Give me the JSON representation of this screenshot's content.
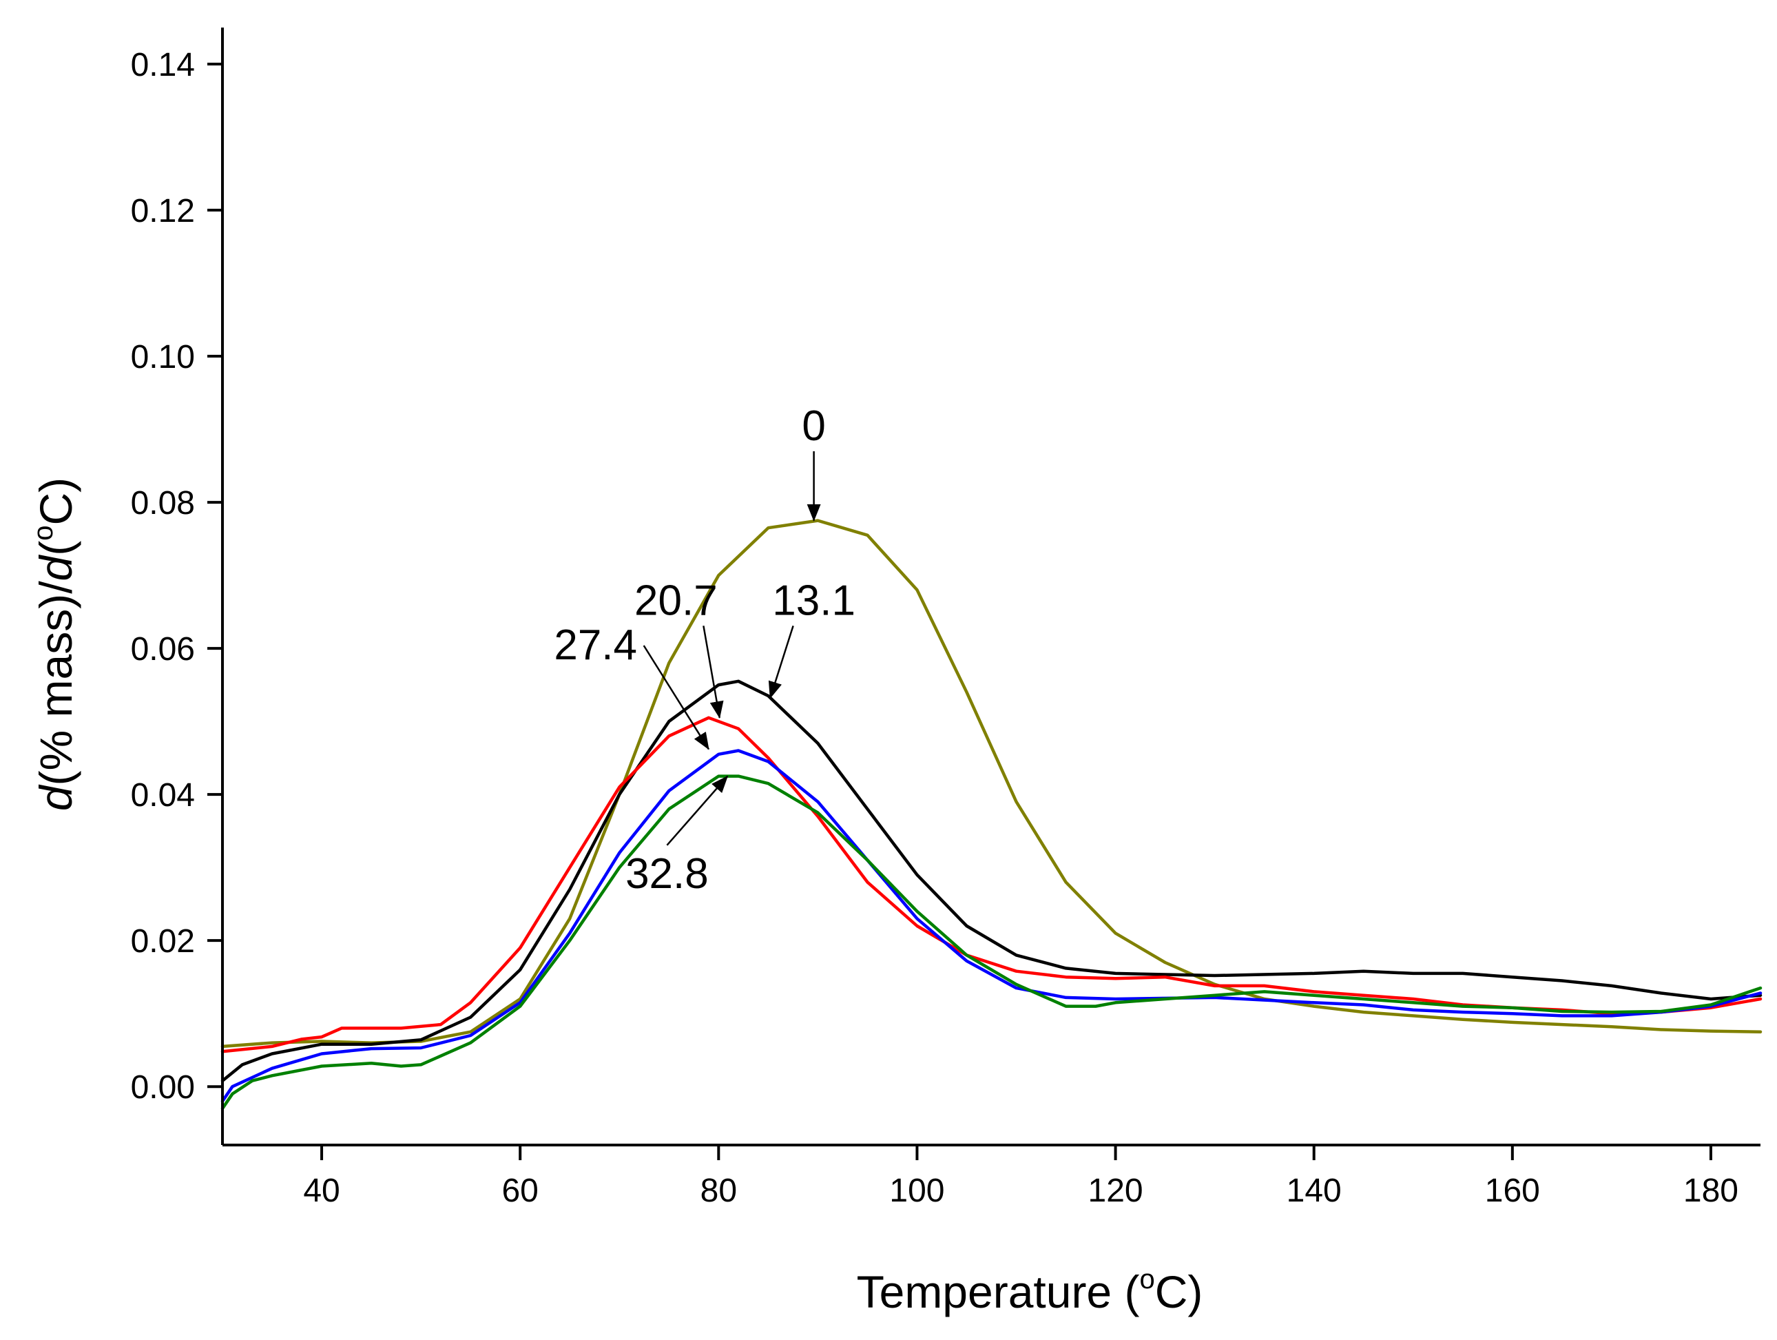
{
  "chart_data": {
    "type": "line",
    "title": "",
    "xlabel": {
      "pre": "Temperature (",
      "sup": "o",
      "post": "C)"
    },
    "ylabel": {
      "d1": "d",
      "mid": "(% mass)/",
      "d2": "d",
      "paren": "(",
      "sup": "o",
      "post": "C)"
    },
    "xlim": [
      30,
      185
    ],
    "ylim": [
      -0.008,
      0.145
    ],
    "xticks": [
      40,
      60,
      80,
      100,
      120,
      140,
      160,
      180
    ],
    "xtick_labels": [
      "40",
      "60",
      "80",
      "100",
      "120",
      "140",
      "160",
      "180"
    ],
    "yticks": [
      0.0,
      0.02,
      0.04,
      0.06,
      0.08,
      0.1,
      0.12,
      0.14
    ],
    "ytick_labels": [
      "0.00",
      "0.02",
      "0.04",
      "0.06",
      "0.08",
      "0.10",
      "0.12",
      "0.14"
    ],
    "series": [
      {
        "name": "0",
        "color": "#808000",
        "points": [
          [
            30,
            0.0055
          ],
          [
            35,
            0.006
          ],
          [
            40,
            0.0062
          ],
          [
            45,
            0.006
          ],
          [
            50,
            0.0062
          ],
          [
            55,
            0.0075
          ],
          [
            60,
            0.012
          ],
          [
            65,
            0.023
          ],
          [
            70,
            0.04
          ],
          [
            75,
            0.058
          ],
          [
            80,
            0.07
          ],
          [
            85,
            0.0765
          ],
          [
            90,
            0.0775
          ],
          [
            95,
            0.0755
          ],
          [
            100,
            0.068
          ],
          [
            105,
            0.054
          ],
          [
            110,
            0.039
          ],
          [
            115,
            0.028
          ],
          [
            120,
            0.021
          ],
          [
            125,
            0.017
          ],
          [
            130,
            0.014
          ],
          [
            135,
            0.012
          ],
          [
            140,
            0.011
          ],
          [
            145,
            0.0102
          ],
          [
            150,
            0.0097
          ],
          [
            155,
            0.0092
          ],
          [
            160,
            0.0088
          ],
          [
            165,
            0.0085
          ],
          [
            170,
            0.0082
          ],
          [
            175,
            0.0078
          ],
          [
            180,
            0.0076
          ],
          [
            185,
            0.0075
          ]
        ]
      },
      {
        "name": "13.1",
        "color": "#000000",
        "points": [
          [
            30,
            0.0008
          ],
          [
            32,
            0.003
          ],
          [
            35,
            0.0045
          ],
          [
            40,
            0.0058
          ],
          [
            45,
            0.0058
          ],
          [
            50,
            0.0064
          ],
          [
            55,
            0.0095
          ],
          [
            60,
            0.016
          ],
          [
            65,
            0.027
          ],
          [
            70,
            0.04
          ],
          [
            75,
            0.05
          ],
          [
            80,
            0.055
          ],
          [
            82,
            0.0555
          ],
          [
            85,
            0.0535
          ],
          [
            90,
            0.047
          ],
          [
            95,
            0.038
          ],
          [
            100,
            0.029
          ],
          [
            105,
            0.022
          ],
          [
            110,
            0.018
          ],
          [
            115,
            0.0162
          ],
          [
            120,
            0.0155
          ],
          [
            130,
            0.0152
          ],
          [
            140,
            0.0155
          ],
          [
            145,
            0.0158
          ],
          [
            150,
            0.0155
          ],
          [
            155,
            0.0155
          ],
          [
            160,
            0.015
          ],
          [
            165,
            0.0145
          ],
          [
            170,
            0.0138
          ],
          [
            175,
            0.0128
          ],
          [
            180,
            0.012
          ],
          [
            185,
            0.0125
          ]
        ]
      },
      {
        "name": "20.7",
        "color": "#ff0000",
        "points": [
          [
            30,
            0.0048
          ],
          [
            35,
            0.0055
          ],
          [
            38,
            0.0065
          ],
          [
            40,
            0.0068
          ],
          [
            42,
            0.008
          ],
          [
            48,
            0.008
          ],
          [
            52,
            0.0085
          ],
          [
            55,
            0.0115
          ],
          [
            60,
            0.019
          ],
          [
            65,
            0.03
          ],
          [
            70,
            0.041
          ],
          [
            75,
            0.048
          ],
          [
            79,
            0.0505
          ],
          [
            82,
            0.049
          ],
          [
            85,
            0.045
          ],
          [
            90,
            0.037
          ],
          [
            95,
            0.028
          ],
          [
            100,
            0.022
          ],
          [
            105,
            0.018
          ],
          [
            110,
            0.0158
          ],
          [
            115,
            0.015
          ],
          [
            120,
            0.0148
          ],
          [
            125,
            0.015
          ],
          [
            130,
            0.0138
          ],
          [
            135,
            0.0138
          ],
          [
            140,
            0.013
          ],
          [
            145,
            0.0125
          ],
          [
            150,
            0.012
          ],
          [
            155,
            0.0112
          ],
          [
            160,
            0.0108
          ],
          [
            165,
            0.0105
          ],
          [
            170,
            0.01
          ],
          [
            175,
            0.0102
          ],
          [
            180,
            0.0108
          ],
          [
            185,
            0.012
          ]
        ]
      },
      {
        "name": "27.4",
        "color": "#0000ff",
        "points": [
          [
            30,
            -0.002
          ],
          [
            31,
            0.0
          ],
          [
            35,
            0.0025
          ],
          [
            40,
            0.0045
          ],
          [
            45,
            0.0052
          ],
          [
            50,
            0.0053
          ],
          [
            55,
            0.007
          ],
          [
            60,
            0.0115
          ],
          [
            65,
            0.021
          ],
          [
            70,
            0.032
          ],
          [
            75,
            0.0405
          ],
          [
            80,
            0.0455
          ],
          [
            82,
            0.046
          ],
          [
            85,
            0.0445
          ],
          [
            90,
            0.039
          ],
          [
            95,
            0.031
          ],
          [
            100,
            0.023
          ],
          [
            105,
            0.0172
          ],
          [
            110,
            0.0135
          ],
          [
            115,
            0.0122
          ],
          [
            120,
            0.012
          ],
          [
            130,
            0.0122
          ],
          [
            140,
            0.0115
          ],
          [
            145,
            0.0112
          ],
          [
            150,
            0.0105
          ],
          [
            155,
            0.0102
          ],
          [
            160,
            0.01
          ],
          [
            165,
            0.0097
          ],
          [
            170,
            0.0097
          ],
          [
            175,
            0.0102
          ],
          [
            180,
            0.011
          ],
          [
            185,
            0.0128
          ]
        ]
      },
      {
        "name": "32.8",
        "color": "#008000",
        "points": [
          [
            30,
            -0.003
          ],
          [
            31,
            -0.001
          ],
          [
            33,
            0.0008
          ],
          [
            35,
            0.0015
          ],
          [
            40,
            0.0028
          ],
          [
            45,
            0.0032
          ],
          [
            48,
            0.0028
          ],
          [
            50,
            0.003
          ],
          [
            55,
            0.006
          ],
          [
            60,
            0.011
          ],
          [
            65,
            0.02
          ],
          [
            70,
            0.03
          ],
          [
            75,
            0.038
          ],
          [
            80,
            0.0425
          ],
          [
            82,
            0.0425
          ],
          [
            85,
            0.0415
          ],
          [
            90,
            0.0375
          ],
          [
            95,
            0.031
          ],
          [
            100,
            0.024
          ],
          [
            105,
            0.018
          ],
          [
            110,
            0.014
          ],
          [
            115,
            0.011
          ],
          [
            118,
            0.011
          ],
          [
            120,
            0.0115
          ],
          [
            125,
            0.012
          ],
          [
            130,
            0.0125
          ],
          [
            135,
            0.013
          ],
          [
            140,
            0.0125
          ],
          [
            145,
            0.012
          ],
          [
            150,
            0.0115
          ],
          [
            155,
            0.011
          ],
          [
            160,
            0.0108
          ],
          [
            165,
            0.0103
          ],
          [
            170,
            0.0102
          ],
          [
            175,
            0.0103
          ],
          [
            180,
            0.0112
          ],
          [
            185,
            0.0135
          ]
        ]
      }
    ],
    "annotations": [
      {
        "text": "0",
        "label_x": 89.6,
        "label_y": 0.0885,
        "tip_x": 89.6,
        "tip_y": 0.0775
      },
      {
        "text": "13.1",
        "label_x": 89.6,
        "label_y": 0.0646,
        "tip_x": 85.2,
        "tip_y": 0.0532
      },
      {
        "text": "20.7",
        "label_x": 75.7,
        "label_y": 0.0646,
        "tip_x": 80.1,
        "tip_y": 0.0505
      },
      {
        "text": "27.4",
        "label_x": 67.6,
        "label_y": 0.0585,
        "tip_x": 79.0,
        "tip_y": 0.0462
      },
      {
        "text": "32.8",
        "label_x": 74.8,
        "label_y": 0.0272,
        "tip_x": 80.9,
        "tip_y": 0.0425
      }
    ]
  }
}
